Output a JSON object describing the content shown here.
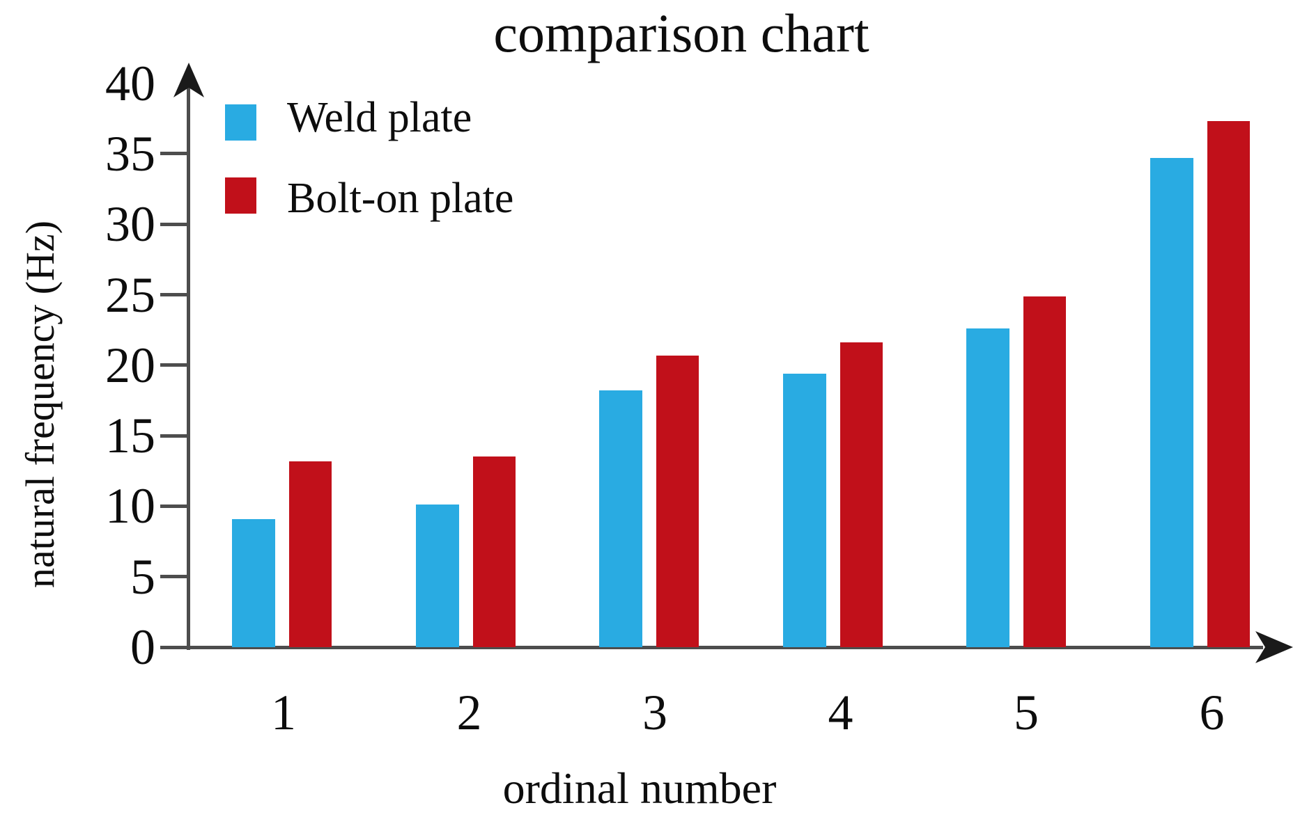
{
  "title": "comparison chart",
  "legend": {
    "items": [
      {
        "label": "Weld plate",
        "color": "#29abe2"
      },
      {
        "label": "Bolt-on plate",
        "color": "#c1101a"
      }
    ]
  },
  "axes": {
    "xlabel": "ordinal number",
    "ylabel": "natural frequency (Hz)"
  },
  "colors": {
    "axis": "#4d4d4d",
    "text": "#0d0d0d",
    "weld": "#29abe2",
    "bolt": "#c1101a"
  },
  "chart_data": {
    "type": "bar",
    "title": "comparison chart",
    "categories": [
      "1",
      "2",
      "3",
      "4",
      "5",
      "6"
    ],
    "series": [
      {
        "name": "Weld plate",
        "color": "#29abe2",
        "values": [
          9.1,
          10.1,
          18.2,
          19.4,
          22.6,
          34.7
        ]
      },
      {
        "name": "Bolt-on plate",
        "color": "#c1101a",
        "values": [
          13.2,
          13.5,
          20.7,
          21.6,
          24.9,
          37.3
        ]
      }
    ],
    "xlabel": "ordinal number",
    "ylabel": "natural frequency (Hz)",
    "ylim": [
      0,
      40
    ],
    "yticks": [
      0,
      5,
      10,
      15,
      20,
      25,
      30,
      35,
      40
    ],
    "grid": false,
    "legend_position": "upper left"
  }
}
